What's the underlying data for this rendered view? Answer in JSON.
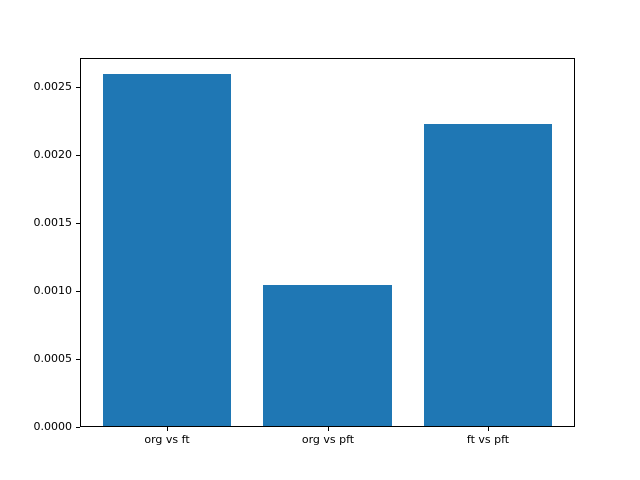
{
  "chart_data": {
    "type": "bar",
    "title": "",
    "xlabel": "",
    "ylabel": "",
    "categories": [
      "org vs ft",
      "org vs pft",
      "ft vs pft"
    ],
    "values": [
      0.00259,
      0.00104,
      0.00222
    ],
    "bar_color": "#1f77b4",
    "background_color": "#ffffff",
    "spine_color": "#000000",
    "bar_width": 0.8,
    "xlim": [
      -0.54,
      2.54
    ],
    "ylim": [
      0,
      0.002716
    ],
    "yticks": {
      "values": [
        0.0,
        0.0005,
        0.001,
        0.0015,
        0.002,
        0.0025
      ],
      "labels": [
        "0.0000",
        "0.0005",
        "0.0010",
        "0.0015",
        "0.0020",
        "0.0025"
      ]
    },
    "grid": false,
    "legend": null
  }
}
